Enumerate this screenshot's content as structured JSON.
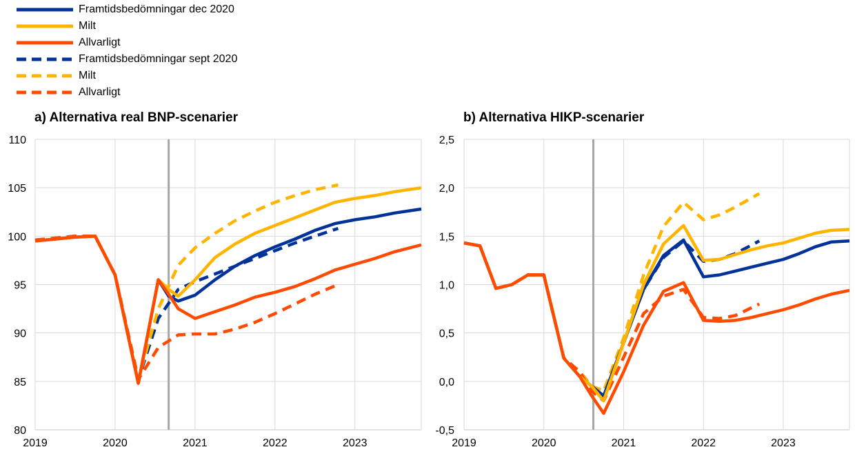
{
  "legend": [
    {
      "label": "Framtidsbedömningar dec 2020",
      "color": "#003299",
      "dash": false
    },
    {
      "label": "Milt",
      "color": "#FFB400",
      "dash": false
    },
    {
      "label": "Allvarligt",
      "color": "#FF4B00",
      "dash": false
    },
    {
      "label": "Framtidsbedömningar sept 2020",
      "color": "#003299",
      "dash": true
    },
    {
      "label": "Milt",
      "color": "#FFB400",
      "dash": true
    },
    {
      "label": "Allvarligt",
      "color": "#FF4B00",
      "dash": true
    }
  ],
  "colors": {
    "navy": "#003299",
    "yellow": "#FFB400",
    "orange": "#FF4B00",
    "grid": "#d9d9d9",
    "axis": "#a6a6a6"
  },
  "chart_data": [
    {
      "type": "line",
      "title": "a) Alternativa real BNP-scenarier",
      "x_tick_labels": [
        "2019",
        "2020",
        "2021",
        "2022",
        "2023"
      ],
      "y_tick_labels": [
        "80",
        "85",
        "90",
        "95",
        "100",
        "105",
        "110"
      ],
      "ylim": [
        80,
        110
      ],
      "xlim": [
        2019,
        2023.83
      ],
      "vline_x": 2020.67,
      "grid": true,
      "series": [
        {
          "legend_index": 0,
          "color": "navy",
          "dash": false,
          "x": [
            2019.0,
            2019.25,
            2019.5,
            2019.75,
            2020.0,
            2020.29,
            2020.54,
            2020.67,
            2020.79,
            2021.0,
            2021.25,
            2021.5,
            2021.75,
            2022.0,
            2022.25,
            2022.5,
            2022.75,
            2023.0,
            2023.25,
            2023.5,
            2023.83
          ],
          "y": [
            99.5,
            99.7,
            99.9,
            100.0,
            96.0,
            84.8,
            95.5,
            93.8,
            93.3,
            93.9,
            95.5,
            96.9,
            98.0,
            98.9,
            99.7,
            100.6,
            101.3,
            101.7,
            102.0,
            102.4,
            102.8
          ]
        },
        {
          "legend_index": 1,
          "color": "yellow",
          "dash": false,
          "x": [
            2019.0,
            2019.25,
            2019.5,
            2019.75,
            2020.0,
            2020.29,
            2020.54,
            2020.67,
            2020.79,
            2021.0,
            2021.25,
            2021.5,
            2021.75,
            2022.0,
            2022.25,
            2022.5,
            2022.75,
            2023.0,
            2023.25,
            2023.5,
            2023.83
          ],
          "y": [
            99.5,
            99.7,
            99.9,
            100.0,
            96.0,
            84.8,
            95.5,
            94.5,
            93.8,
            95.5,
            97.8,
            99.2,
            100.3,
            101.1,
            101.9,
            102.7,
            103.5,
            103.9,
            104.2,
            104.6,
            105.0
          ]
        },
        {
          "legend_index": 2,
          "color": "orange",
          "dash": false,
          "x": [
            2019.0,
            2019.25,
            2019.5,
            2019.75,
            2020.0,
            2020.29,
            2020.54,
            2020.67,
            2020.79,
            2021.0,
            2021.25,
            2021.5,
            2021.75,
            2022.0,
            2022.25,
            2022.5,
            2022.75,
            2023.0,
            2023.25,
            2023.5,
            2023.83
          ],
          "y": [
            99.5,
            99.7,
            99.9,
            100.0,
            96.0,
            84.8,
            95.5,
            94.0,
            92.5,
            91.5,
            92.2,
            92.9,
            93.7,
            94.2,
            94.8,
            95.6,
            96.5,
            97.1,
            97.7,
            98.4,
            99.1
          ]
        },
        {
          "legend_index": 3,
          "color": "navy",
          "dash": true,
          "x": [
            2019.0,
            2019.25,
            2019.5,
            2019.75,
            2020.0,
            2020.29,
            2020.54,
            2020.79,
            2021.0,
            2021.25,
            2021.5,
            2021.75,
            2022.0,
            2022.25,
            2022.5,
            2022.79
          ],
          "y": [
            99.6,
            99.8,
            100.0,
            100.0,
            96.0,
            85.2,
            91.5,
            94.5,
            95.3,
            96.1,
            96.9,
            97.7,
            98.5,
            99.3,
            100.0,
            100.8
          ]
        },
        {
          "legend_index": 4,
          "color": "yellow",
          "dash": true,
          "x": [
            2019.0,
            2019.25,
            2019.5,
            2019.75,
            2020.0,
            2020.29,
            2020.54,
            2020.79,
            2021.0,
            2021.25,
            2021.5,
            2021.75,
            2022.0,
            2022.25,
            2022.5,
            2022.79
          ],
          "y": [
            99.6,
            99.8,
            100.0,
            100.0,
            96.0,
            85.2,
            92.5,
            97.0,
            98.8,
            100.3,
            101.6,
            102.6,
            103.5,
            104.2,
            104.8,
            105.3
          ]
        },
        {
          "legend_index": 5,
          "color": "orange",
          "dash": true,
          "x": [
            2019.0,
            2019.25,
            2019.5,
            2019.75,
            2020.0,
            2020.29,
            2020.54,
            2020.79,
            2021.0,
            2021.25,
            2021.5,
            2021.75,
            2022.0,
            2022.25,
            2022.5,
            2022.79
          ],
          "y": [
            99.6,
            99.8,
            100.0,
            100.0,
            96.0,
            85.2,
            88.5,
            89.8,
            89.9,
            89.9,
            90.4,
            91.1,
            92.0,
            93.0,
            94.0,
            95.0
          ]
        }
      ]
    },
    {
      "type": "line",
      "title": "b) Alternativa HIKP-scenarier",
      "x_tick_labels": [
        "2019",
        "2020",
        "2021",
        "2022",
        "2023"
      ],
      "y_tick_labels": [
        "-0,5",
        "0,0",
        "0,5",
        "1,0",
        "1,5",
        "2,0",
        "2,5"
      ],
      "ylim": [
        -0.5,
        2.5
      ],
      "xlim": [
        2019,
        2023.83
      ],
      "vline_x": 2020.62,
      "grid": true,
      "series": [
        {
          "legend_index": 0,
          "color": "navy",
          "dash": false,
          "x": [
            2019.0,
            2019.2,
            2019.4,
            2019.6,
            2019.8,
            2020.0,
            2020.25,
            2020.45,
            2020.6,
            2020.75,
            2021.0,
            2021.25,
            2021.5,
            2021.75,
            2022.0,
            2022.2,
            2022.4,
            2022.6,
            2022.8,
            2023.0,
            2023.2,
            2023.4,
            2023.6,
            2023.83
          ],
          "y": [
            1.43,
            1.4,
            0.96,
            1.0,
            1.1,
            1.1,
            0.24,
            0.05,
            -0.05,
            -0.15,
            0.4,
            0.95,
            1.3,
            1.46,
            1.08,
            1.1,
            1.14,
            1.18,
            1.22,
            1.26,
            1.32,
            1.39,
            1.44,
            1.45
          ]
        },
        {
          "legend_index": 1,
          "color": "yellow",
          "dash": false,
          "x": [
            2019.0,
            2019.2,
            2019.4,
            2019.6,
            2019.8,
            2020.0,
            2020.25,
            2020.45,
            2020.6,
            2020.75,
            2021.0,
            2021.25,
            2021.5,
            2021.75,
            2022.0,
            2022.2,
            2022.4,
            2022.6,
            2022.8,
            2023.0,
            2023.2,
            2023.4,
            2023.6,
            2023.83
          ],
          "y": [
            1.43,
            1.4,
            0.96,
            1.0,
            1.1,
            1.1,
            0.24,
            0.05,
            -0.05,
            -0.2,
            0.4,
            1.0,
            1.42,
            1.61,
            1.25,
            1.26,
            1.31,
            1.36,
            1.4,
            1.43,
            1.48,
            1.53,
            1.56,
            1.57
          ]
        },
        {
          "legend_index": 2,
          "color": "orange",
          "dash": false,
          "x": [
            2019.0,
            2019.2,
            2019.4,
            2019.6,
            2019.8,
            2020.0,
            2020.25,
            2020.45,
            2020.6,
            2020.75,
            2021.0,
            2021.25,
            2021.5,
            2021.75,
            2022.0,
            2022.2,
            2022.4,
            2022.6,
            2022.8,
            2023.0,
            2023.2,
            2023.4,
            2023.6,
            2023.83
          ],
          "y": [
            1.43,
            1.4,
            0.96,
            1.0,
            1.1,
            1.1,
            0.24,
            0.05,
            -0.15,
            -0.33,
            0.1,
            0.58,
            0.93,
            1.02,
            0.63,
            0.62,
            0.63,
            0.66,
            0.7,
            0.74,
            0.79,
            0.85,
            0.9,
            0.94
          ]
        },
        {
          "legend_index": 3,
          "color": "navy",
          "dash": true,
          "x": [
            2019.0,
            2019.2,
            2019.4,
            2019.6,
            2019.8,
            2020.0,
            2020.25,
            2020.45,
            2020.6,
            2020.75,
            2021.0,
            2021.25,
            2021.5,
            2021.75,
            2022.0,
            2022.2,
            2022.4,
            2022.7
          ],
          "y": [
            1.43,
            1.4,
            0.96,
            1.0,
            1.1,
            1.1,
            0.24,
            0.1,
            -0.05,
            -0.1,
            0.4,
            0.95,
            1.28,
            1.45,
            1.24,
            1.26,
            1.32,
            1.45
          ]
        },
        {
          "legend_index": 4,
          "color": "yellow",
          "dash": true,
          "x": [
            2019.0,
            2019.2,
            2019.4,
            2019.6,
            2019.8,
            2020.0,
            2020.25,
            2020.45,
            2020.6,
            2020.75,
            2021.0,
            2021.25,
            2021.5,
            2021.75,
            2022.0,
            2022.2,
            2022.4,
            2022.7
          ],
          "y": [
            1.43,
            1.4,
            0.96,
            1.0,
            1.1,
            1.1,
            0.24,
            0.1,
            -0.05,
            -0.1,
            0.45,
            1.1,
            1.6,
            1.85,
            1.67,
            1.72,
            1.8,
            1.94
          ]
        },
        {
          "legend_index": 5,
          "color": "orange",
          "dash": true,
          "x": [
            2019.0,
            2019.2,
            2019.4,
            2019.6,
            2019.8,
            2020.0,
            2020.25,
            2020.45,
            2020.6,
            2020.75,
            2021.0,
            2021.25,
            2021.5,
            2021.75,
            2022.0,
            2022.2,
            2022.4,
            2022.7
          ],
          "y": [
            1.43,
            1.4,
            0.96,
            1.0,
            1.1,
            1.1,
            0.24,
            0.1,
            -0.1,
            -0.2,
            0.25,
            0.7,
            0.88,
            0.95,
            0.66,
            0.65,
            0.68,
            0.8
          ]
        }
      ]
    }
  ]
}
